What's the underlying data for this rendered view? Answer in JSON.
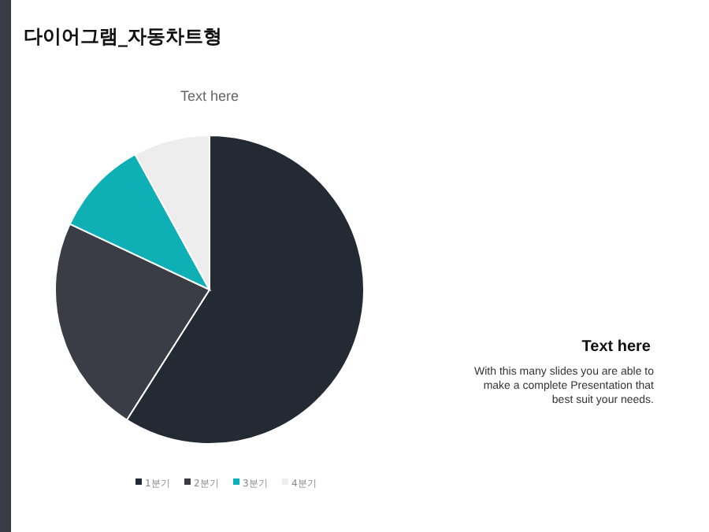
{
  "chart_data": {
    "type": "pie",
    "title": "다이어그램_자동차트형",
    "subtitle": "Text here",
    "categories": [
      "1분기",
      "2분기",
      "3분기",
      "4분기"
    ],
    "values": [
      59,
      23,
      10,
      8
    ],
    "colors": [
      "#242a33",
      "#3a3d45",
      "#0fb0b5",
      "#ededed"
    ],
    "legend": "bottom",
    "annotations": [
      "Text here",
      "With this many slides you are able to make a complete Presentation that best suit your needs."
    ]
  }
}
